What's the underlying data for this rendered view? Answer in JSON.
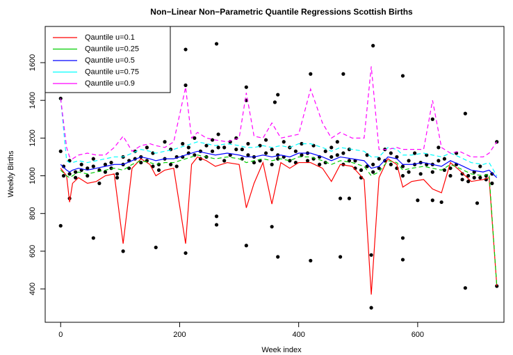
{
  "chart_data": {
    "type": "line",
    "title": "Non−Linear Non−Parametric Quantile Regressions Scottish Births",
    "x_label": "Week index",
    "y_label": "Weekly Births",
    "xlim": [
      -26,
      745
    ],
    "ylim": [
      223,
      1792
    ],
    "xticks": [
      0,
      200,
      400,
      600
    ],
    "yticks": [
      400,
      600,
      800,
      1000,
      1200,
      1400,
      1600
    ],
    "legend": "top-left",
    "point_color": "#000000",
    "points": [
      {
        "x": [
          0,
          0,
          0,
          15,
          55,
          105,
          160,
          210,
          210,
          210,
          262,
          262,
          262,
          312,
          312,
          312,
          355,
          360,
          365,
          365,
          420,
          420,
          470,
          470,
          475,
          485,
          522,
          522,
          525,
          575,
          575,
          575,
          600,
          625,
          625,
          640,
          680,
          680,
          700,
          733,
          733
        ],
        "values": [
          1410,
          735,
          1130,
          880,
          670,
          600,
          620,
          590,
          1670,
          1480,
          1700,
          785,
          740,
          1470,
          630,
          1400,
          730,
          1390,
          1430,
          570,
          550,
          1540,
          570,
          880,
          1540,
          880,
          300,
          580,
          1690,
          1530,
          670,
          555,
          870,
          870,
          1300,
          860,
          1330,
          405,
          855,
          415,
          1180
        ]
      },
      {
        "x": [
          5,
          15,
          25,
          35,
          45,
          55,
          65,
          75,
          85,
          95,
          105,
          115,
          125,
          135,
          145,
          155,
          165,
          175,
          185,
          195,
          205,
          215,
          225,
          235,
          245,
          255,
          265,
          275,
          285,
          295,
          305,
          315,
          325,
          335,
          345,
          355,
          365,
          375,
          385,
          395,
          405,
          415,
          425,
          435,
          445,
          455,
          465,
          475,
          485,
          495,
          505,
          515,
          525,
          535,
          545,
          555,
          565,
          575,
          585,
          595,
          605,
          615,
          625,
          635,
          645,
          655,
          665,
          675,
          685,
          695,
          705,
          715,
          725
        ],
        "values": [
          1050,
          1080,
          1020,
          1060,
          1040,
          1090,
          1030,
          1060,
          1070,
          1010,
          1100,
          1080,
          1130,
          1100,
          1150,
          1120,
          1060,
          1180,
          1140,
          1100,
          1170,
          1150,
          1200,
          1130,
          1160,
          1190,
          1220,
          1150,
          1180,
          1200,
          1140,
          1170,
          1100,
          1160,
          1190,
          1140,
          1110,
          1180,
          1150,
          1130,
          1170,
          1120,
          1160,
          1100,
          1130,
          1150,
          1180,
          1120,
          1140,
          1080,
          1030,
          1110,
          1060,
          1090,
          1140,
          1120,
          1100,
          1050,
          1080,
          1120,
          1070,
          1110,
          1060,
          1150,
          1090,
          1040,
          1120,
          1010,
          1000,
          1020,
          1050,
          980,
          1010
        ]
      },
      {
        "x": [
          5,
          15,
          25,
          35,
          45,
          55,
          65,
          75,
          85,
          95,
          105,
          115,
          125,
          135,
          145,
          155,
          165,
          175,
          185,
          195,
          205,
          215,
          225,
          235,
          245,
          255,
          265,
          275,
          285,
          295,
          305,
          315,
          325,
          335,
          345,
          355,
          365,
          375,
          385,
          395,
          405,
          415,
          425,
          435,
          445,
          455,
          465,
          475,
          485,
          495,
          505,
          515,
          525,
          535,
          545,
          555,
          565,
          575,
          585,
          595,
          605,
          615,
          625,
          635,
          645,
          655,
          665,
          675,
          685,
          695,
          705,
          715,
          725
        ],
        "values": [
          1000,
          1010,
          990,
          1030,
          1000,
          1050,
          960,
          1020,
          1040,
          990,
          1060,
          1040,
          1090,
          1070,
          1080,
          1050,
          1030,
          1090,
          1060,
          1050,
          1100,
          1120,
          1110,
          1090,
          1100,
          1130,
          1150,
          1080,
          1110,
          1140,
          1090,
          1110,
          1070,
          1080,
          1120,
          1060,
          1090,
          1100,
          1080,
          1070,
          1110,
          1080,
          1090,
          1060,
          1070,
          1100,
          1110,
          1060,
          1080,
          1040,
          990,
          1050,
          1020,
          1040,
          1080,
          1060,
          1040,
          1000,
          1020,
          1060,
          1010,
          1060,
          1020,
          1080,
          1030,
          1000,
          1060,
          980,
          970,
          990,
          990,
          1000,
          960
        ]
      }
    ],
    "x": [
      0,
      10,
      15,
      20,
      30,
      45,
      60,
      75,
      90,
      105,
      120,
      135,
      150,
      160,
      175,
      190,
      210,
      220,
      230,
      245,
      260,
      280,
      300,
      312,
      325,
      340,
      355,
      370,
      385,
      400,
      420,
      440,
      455,
      470,
      490,
      510,
      522,
      535,
      550,
      565,
      575,
      590,
      610,
      625,
      640,
      655,
      670,
      690,
      710,
      720,
      733
    ],
    "series": [
      {
        "name": "Qauntile u=0.1",
        "color": "#ff0000",
        "dashed": false,
        "values": [
          1040,
          1000,
          860,
          960,
          990,
          960,
          970,
          1000,
          1010,
          640,
          1040,
          1090,
          1060,
          1000,
          1030,
          1040,
          640,
          1060,
          1100,
          1080,
          1050,
          1070,
          1060,
          830,
          960,
          1070,
          850,
          1070,
          1040,
          1070,
          1070,
          1040,
          970,
          1060,
          1050,
          980,
          370,
          990,
          1090,
          1060,
          940,
          970,
          980,
          930,
          910,
          1070,
          1030,
          970,
          980,
          990,
          415
        ]
      },
      {
        "name": "Qauntile u=0.25",
        "color": "#00cd00",
        "dashed": true,
        "values": [
          1030,
          1000,
          990,
          1000,
          1020,
          1010,
          1020,
          1030,
          1040,
          1030,
          1060,
          1080,
          1070,
          1060,
          1070,
          1070,
          1090,
          1100,
          1110,
          1100,
          1090,
          1100,
          1090,
          1070,
          1080,
          1090,
          1080,
          1090,
          1080,
          1100,
          1100,
          1080,
          1060,
          1080,
          1070,
          1050,
          1000,
          1020,
          1080,
          1070,
          1030,
          1040,
          1050,
          1040,
          1030,
          1060,
          1040,
          1010,
          1000,
          1010,
          415
        ]
      },
      {
        "name": "Qauntile u=0.5",
        "color": "#0000ff",
        "dashed": false,
        "values": [
          1060,
          1030,
          1020,
          1030,
          1040,
          1030,
          1040,
          1050,
          1060,
          1060,
          1080,
          1100,
          1090,
          1080,
          1090,
          1090,
          1110,
          1120,
          1130,
          1120,
          1110,
          1120,
          1110,
          1100,
          1100,
          1110,
          1100,
          1110,
          1100,
          1120,
          1120,
          1100,
          1080,
          1100,
          1090,
          1080,
          1040,
          1050,
          1100,
          1090,
          1060,
          1060,
          1070,
          1060,
          1050,
          1080,
          1060,
          1030,
          1020,
          1030,
          990
        ]
      },
      {
        "name": "Qauntile u=0.75",
        "color": "#00ffff",
        "dashed": true,
        "values": [
          1410,
          1080,
          1070,
          1070,
          1080,
          1070,
          1080,
          1090,
          1100,
          1100,
          1120,
          1140,
          1130,
          1120,
          1130,
          1140,
          1160,
          1170,
          1180,
          1170,
          1160,
          1170,
          1160,
          1150,
          1150,
          1160,
          1150,
          1160,
          1150,
          1170,
          1170,
          1150,
          1130,
          1150,
          1140,
          1130,
          1100,
          1100,
          1150,
          1140,
          1110,
          1110,
          1120,
          1110,
          1100,
          1120,
          1100,
          1070,
          1060,
          1070,
          1000
        ]
      },
      {
        "name": "Qauntile u=0.9",
        "color": "#ff00ff",
        "dashed": true,
        "values": [
          1410,
          1150,
          1100,
          1090,
          1110,
          1120,
          1110,
          1110,
          1150,
          1210,
          1130,
          1160,
          1170,
          1160,
          1150,
          1180,
          1470,
          1200,
          1230,
          1200,
          1190,
          1180,
          1200,
          1440,
          1210,
          1200,
          1280,
          1200,
          1210,
          1220,
          1460,
          1280,
          1200,
          1230,
          1200,
          1200,
          1580,
          1140,
          1140,
          1150,
          1140,
          1140,
          1140,
          1400,
          1150,
          1120,
          1130,
          1100,
          1100,
          1120,
          1180
        ]
      }
    ]
  }
}
